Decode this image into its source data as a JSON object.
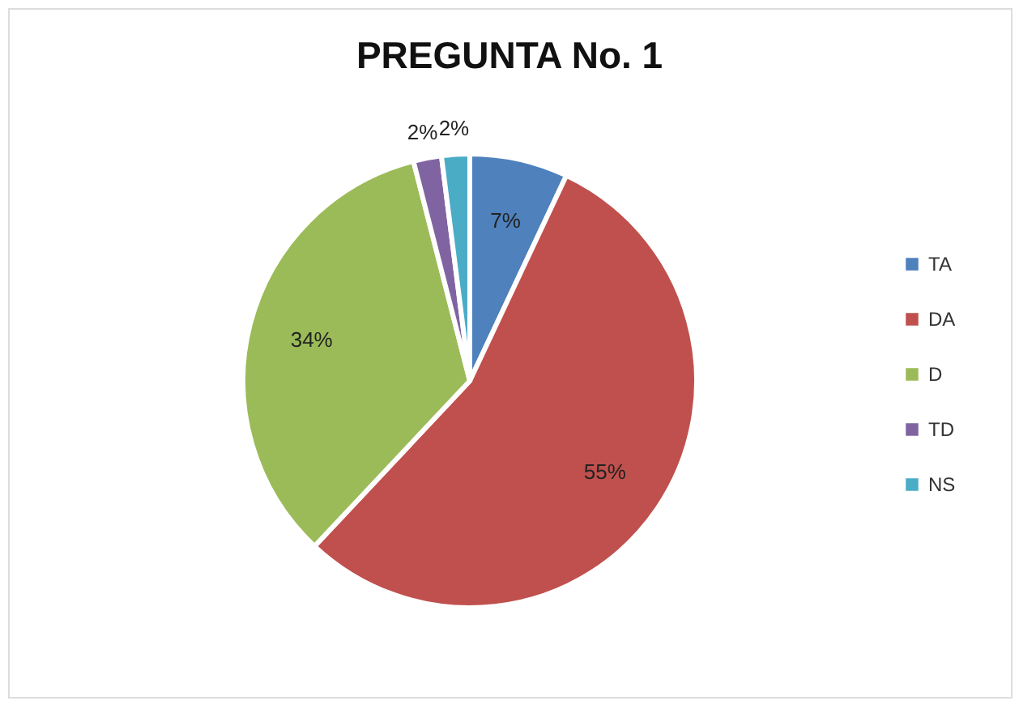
{
  "chart_data": {
    "type": "pie",
    "title": "PREGUNTA No. 1",
    "categories": [
      "TA",
      "DA",
      "D",
      "TD",
      "NS"
    ],
    "values": [
      7,
      55,
      34,
      2,
      2
    ],
    "colors": [
      "#4f81bd",
      "#c0504d",
      "#9bbb59",
      "#8064a2",
      "#4bacc6"
    ],
    "value_labels": [
      "7%",
      "55%",
      "34%",
      "2%",
      "2%"
    ],
    "legend": "right"
  }
}
